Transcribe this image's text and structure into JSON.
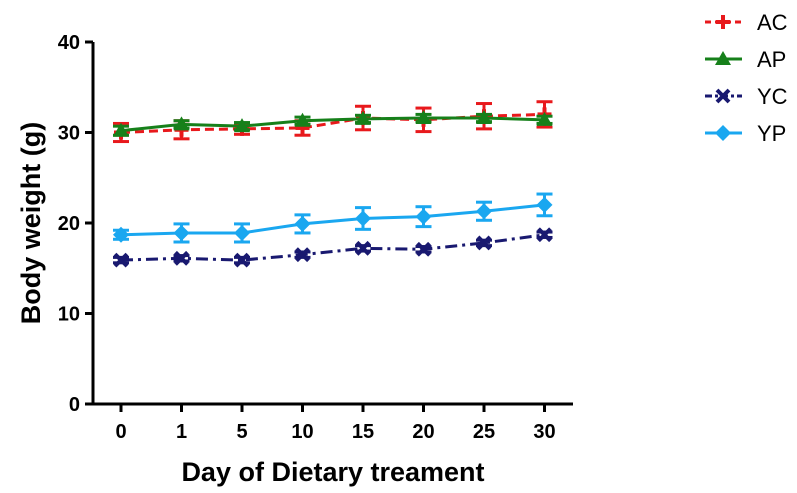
{
  "chart_data": {
    "type": "line",
    "xlabel": "Day of Dietary treament",
    "ylabel": "Body weight (g)",
    "ylim": [
      0,
      40
    ],
    "yticks": [
      "0",
      "10",
      "20",
      "30",
      "40"
    ],
    "categories": [
      "0",
      "1",
      "5",
      "10",
      "15",
      "20",
      "25",
      "30"
    ],
    "grid": false,
    "legend_position": "top-right",
    "error_bars": true,
    "series": [
      {
        "name": "AC",
        "color": "#e8191c",
        "marker": "plus",
        "line_style": "dashed",
        "values": [
          30.0,
          30.3,
          30.4,
          30.5,
          31.6,
          31.4,
          31.8,
          32.0
        ],
        "errors": [
          1.0,
          1.0,
          0.6,
          0.8,
          1.3,
          1.3,
          1.4,
          1.4
        ]
      },
      {
        "name": "AP",
        "color": "#16801a",
        "marker": "triangle",
        "line_style": "solid",
        "values": [
          30.2,
          30.9,
          30.7,
          31.3,
          31.5,
          31.6,
          31.6,
          31.4
        ],
        "errors": [
          0.5,
          0.4,
          0.4,
          0.4,
          0.4,
          0.4,
          0.4,
          0.4
        ]
      },
      {
        "name": "YC",
        "color": "#191970",
        "marker": "x",
        "line_style": "dashdot",
        "values": [
          15.9,
          16.1,
          15.9,
          16.5,
          17.2,
          17.1,
          17.8,
          18.7
        ],
        "errors": [
          0.3,
          0.3,
          0.3,
          0.3,
          0.3,
          0.3,
          0.3,
          0.3
        ]
      },
      {
        "name": "YP",
        "color": "#1aa7f0",
        "marker": "diamond",
        "line_style": "solid",
        "values": [
          18.7,
          18.9,
          18.9,
          19.9,
          20.5,
          20.7,
          21.3,
          22.0
        ],
        "errors": [
          0.5,
          1.0,
          1.0,
          1.0,
          1.2,
          1.1,
          1.0,
          1.2
        ]
      }
    ]
  }
}
